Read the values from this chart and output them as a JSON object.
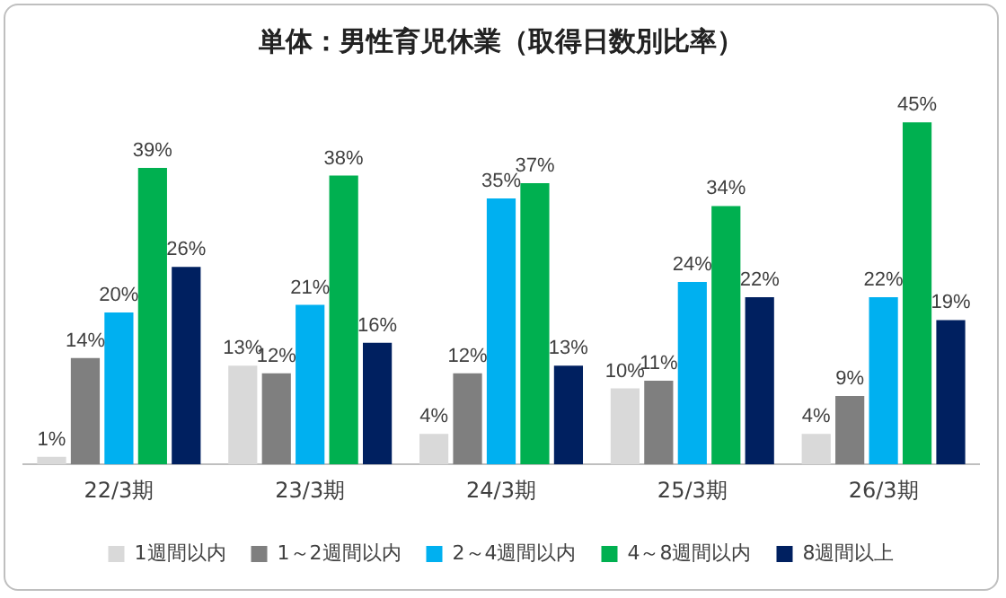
{
  "chart_data": {
    "type": "bar",
    "title": "単体：男性育児休業（取得日数別比率）",
    "categories": [
      "22/3期",
      "23/3期",
      "24/3期",
      "25/3期",
      "26/3期"
    ],
    "series": [
      {
        "name": "1週間以内",
        "color": "#d9d9d9",
        "values": [
          1,
          13,
          4,
          10,
          4
        ],
        "value_labels": [
          "1%",
          "13%",
          "4%",
          "10%",
          "4%"
        ]
      },
      {
        "name": "1～2週間以内",
        "color": "#7f7f7f",
        "values": [
          14,
          12,
          12,
          11,
          9
        ],
        "value_labels": [
          "14%",
          "12%",
          "12%",
          "11%",
          "9%"
        ]
      },
      {
        "name": "2～4週間以内",
        "color": "#00b0f0",
        "values": [
          20,
          21,
          35,
          24,
          22
        ],
        "value_labels": [
          "20%",
          "21%",
          "35%",
          "24%",
          "22%"
        ]
      },
      {
        "name": "4～8週間以内",
        "color": "#00b050",
        "values": [
          39,
          38,
          37,
          34,
          45
        ],
        "value_labels": [
          "39%",
          "38%",
          "37%",
          "34%",
          "45%"
        ]
      },
      {
        "name": "8週間以上",
        "color": "#002060",
        "values": [
          26,
          16,
          13,
          22,
          19
        ],
        "value_labels": [
          "26%",
          "16%",
          "13%",
          "22%",
          "19%"
        ]
      }
    ],
    "tick_labels": "x",
    "grid": false,
    "legend": "bottom"
  }
}
